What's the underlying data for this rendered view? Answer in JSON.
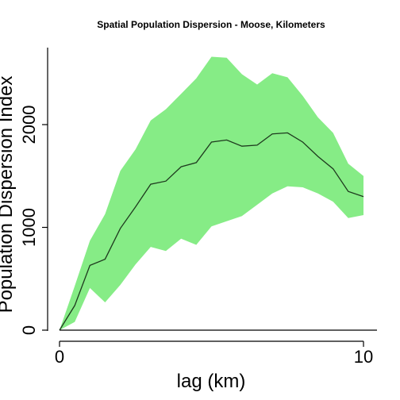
{
  "chart_data": {
    "type": "area",
    "title": "Spatial Population Dispersion - Moose, Kilometers",
    "xlabel": "lag (km)",
    "ylabel": "Population Dispersion Index",
    "xlim": [
      0,
      10
    ],
    "ylim": [
      0,
      2700
    ],
    "x_ticks": [
      0,
      10
    ],
    "y_ticks": [
      0,
      1000,
      2000
    ],
    "grid": false,
    "band_color": "#86ec86",
    "line_color": "#1e3a1e",
    "x": [
      0,
      0.5,
      1,
      1.5,
      2,
      2.5,
      3,
      3.5,
      4,
      4.5,
      5,
      5.5,
      6,
      6.5,
      7,
      7.5,
      8,
      8.5,
      9,
      9.5,
      10
    ],
    "series": [
      {
        "role": "mean",
        "values": [
          0,
          240,
          630,
          690,
          990,
          1200,
          1420,
          1450,
          1590,
          1630,
          1830,
          1850,
          1790,
          1800,
          1910,
          1920,
          1830,
          1690,
          1570,
          1350,
          1300
        ]
      },
      {
        "role": "lower",
        "values": [
          0,
          80,
          410,
          270,
          440,
          640,
          810,
          770,
          890,
          830,
          1010,
          1060,
          1110,
          1220,
          1330,
          1400,
          1390,
          1330,
          1250,
          1090,
          1120
        ]
      },
      {
        "role": "upper",
        "values": [
          0,
          430,
          870,
          1130,
          1550,
          1760,
          2040,
          2150,
          2300,
          2450,
          2660,
          2650,
          2490,
          2390,
          2500,
          2460,
          2280,
          2070,
          1920,
          1620,
          1500
        ]
      }
    ]
  }
}
